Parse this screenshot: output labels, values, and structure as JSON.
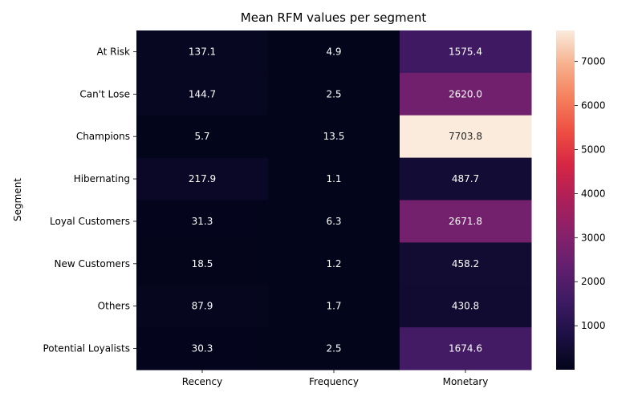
{
  "chart_data": {
    "type": "heatmap",
    "title": "Mean RFM values per segment",
    "ylabel": "Segment",
    "xlabel": "",
    "columns": [
      "Recency",
      "Frequency",
      "Monetary"
    ],
    "rows": [
      "At Risk",
      "Can't Lose",
      "Champions",
      "Hibernating",
      "Loyal Customers",
      "New Customers",
      "Others",
      "Potential Loyalists"
    ],
    "values": [
      [
        137.1,
        4.9,
        1575.4
      ],
      [
        144.7,
        2.5,
        2620.0
      ],
      [
        5.7,
        13.5,
        7703.8
      ],
      [
        217.9,
        1.1,
        487.7
      ],
      [
        31.3,
        6.3,
        2671.8
      ],
      [
        18.5,
        1.2,
        458.2
      ],
      [
        87.9,
        1.7,
        430.8
      ],
      [
        30.3,
        2.5,
        1674.6
      ]
    ],
    "colorbar": {
      "ticks": [
        1000,
        2000,
        3000,
        4000,
        5000,
        6000,
        7000
      ],
      "range": [
        1.1,
        7703.8
      ],
      "colormap": "rocket"
    }
  }
}
